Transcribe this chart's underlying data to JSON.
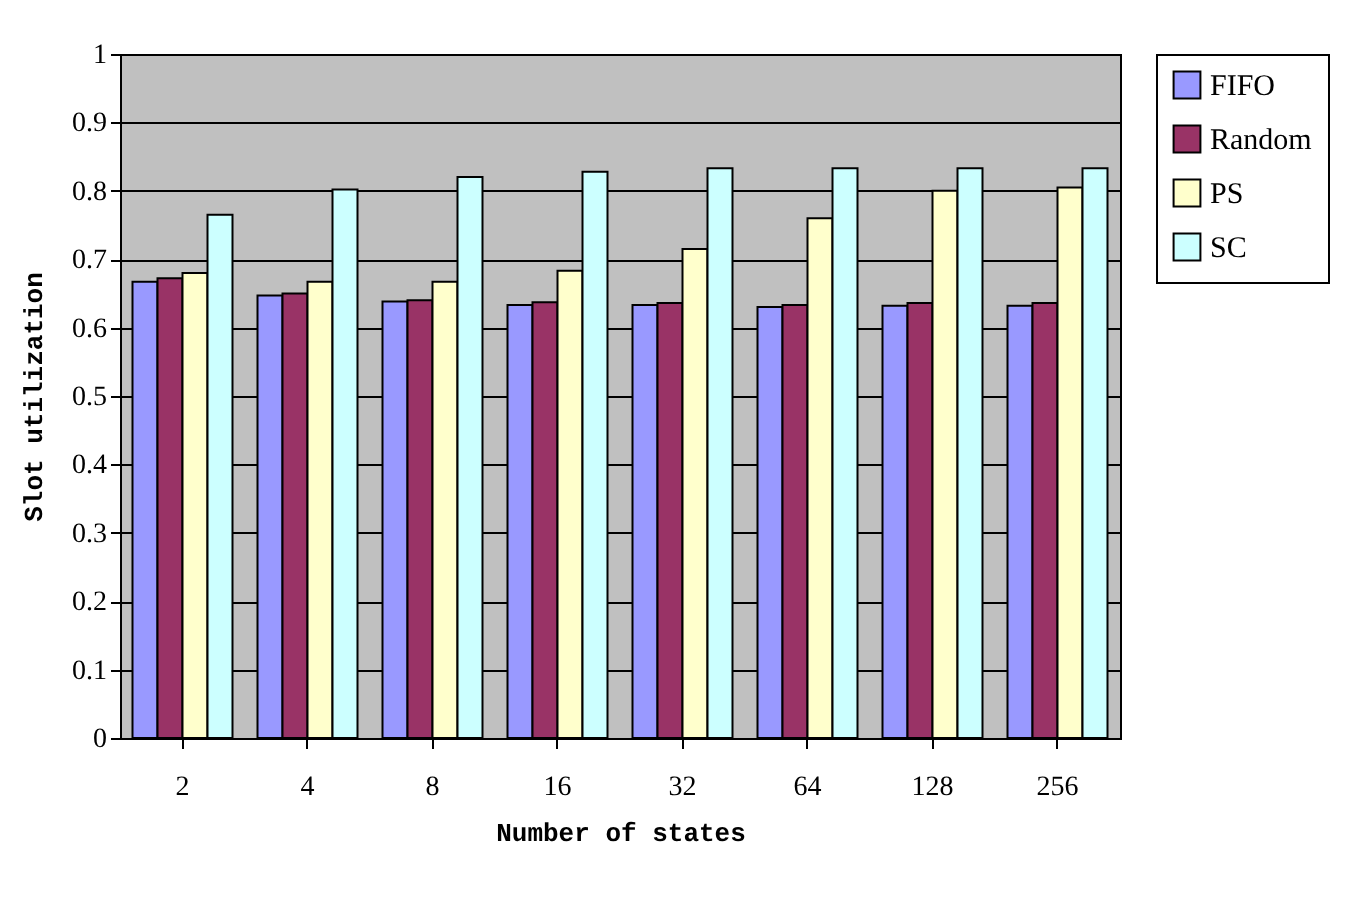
{
  "chart_data": {
    "type": "bar",
    "xlabel": "Number of states",
    "ylabel": "Slot utilization",
    "categories": [
      "2",
      "4",
      "8",
      "16",
      "32",
      "64",
      "128",
      "256"
    ],
    "series": [
      {
        "name": "FIFO",
        "color": "#9999ff",
        "values": [
          0.667,
          0.647,
          0.638,
          0.633,
          0.633,
          0.63,
          0.632,
          0.632
        ]
      },
      {
        "name": "Random",
        "color": "#993366",
        "values": [
          0.672,
          0.65,
          0.64,
          0.637,
          0.636,
          0.633,
          0.636,
          0.636
        ]
      },
      {
        "name": "PS",
        "color": "#ffffcc",
        "values": [
          0.68,
          0.667,
          0.667,
          0.683,
          0.715,
          0.76,
          0.8,
          0.805
        ]
      },
      {
        "name": "SC",
        "color": "#ccffff",
        "values": [
          0.765,
          0.802,
          0.82,
          0.828,
          0.833,
          0.833,
          0.833,
          0.833
        ]
      }
    ],
    "ylim": [
      0,
      1
    ],
    "yticks": [
      0,
      0.1,
      0.2,
      0.3,
      0.4,
      0.5,
      0.6,
      0.7,
      0.8,
      0.9,
      1
    ],
    "grid": "y",
    "legend": "right"
  }
}
